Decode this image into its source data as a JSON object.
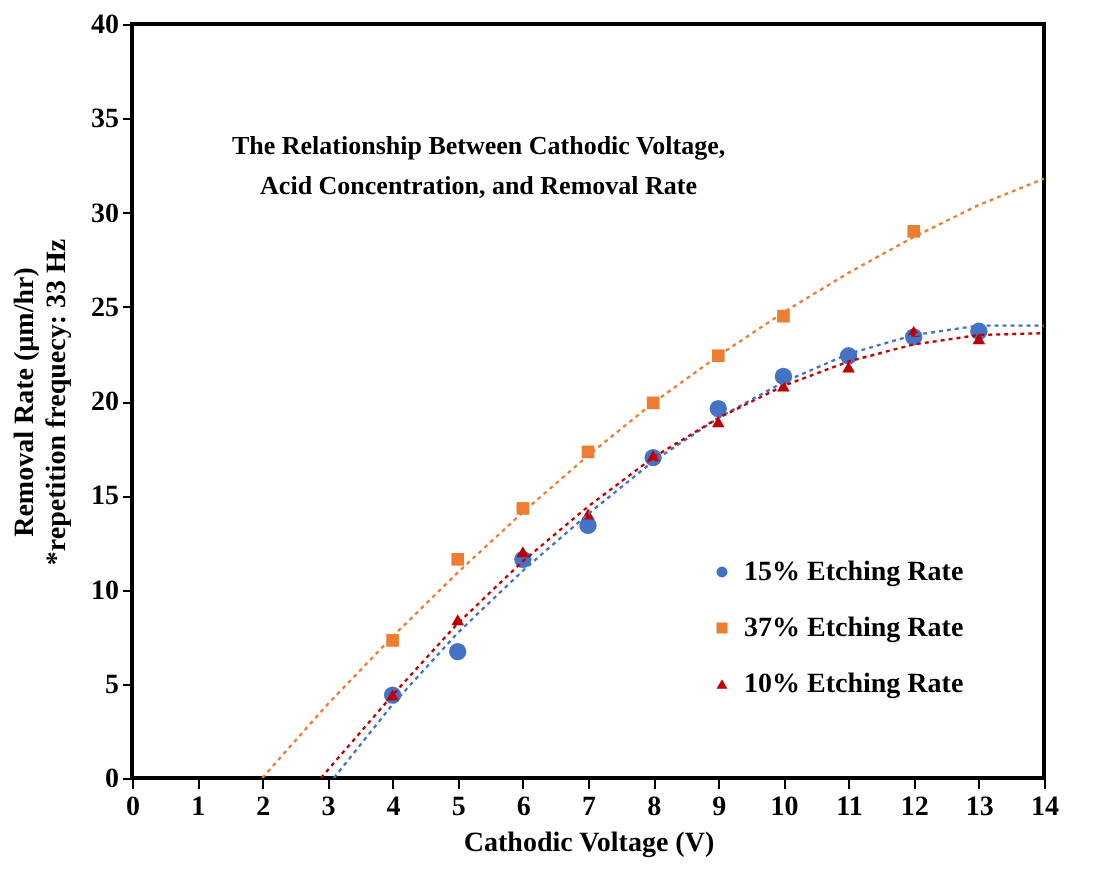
{
  "chart_data": {
    "type": "scatter",
    "title": "The Relationship Between Cathodic Voltage,\nAcid Concentration, and Removal Rate",
    "xlabel": "Cathodic Voltage (V)",
    "ylabel": "Removal  Rate (µm/hr)\n*repetition frequecy: 33 Hz",
    "xlim": [
      0,
      14
    ],
    "ylim": [
      0,
      40
    ],
    "xticks": [
      0,
      1,
      2,
      3,
      4,
      5,
      6,
      7,
      8,
      9,
      10,
      11,
      12,
      13,
      14
    ],
    "yticks": [
      0,
      5,
      10,
      15,
      20,
      25,
      30,
      35,
      40
    ],
    "grid": false,
    "legend": "bottom right",
    "series": [
      {
        "name": "15% Etching Rate",
        "color": "#4472c4",
        "marker": "circle",
        "x": [
          4,
          5,
          6,
          7,
          8,
          9,
          10,
          11,
          12,
          13
        ],
        "values": [
          4.4,
          6.7,
          11.6,
          13.4,
          17.0,
          19.6,
          21.3,
          22.4,
          23.4,
          23.7
        ]
      },
      {
        "name": "37% Etching Rate",
        "color": "#ed7d31",
        "marker": "square",
        "x": [
          4,
          5,
          6,
          7,
          8,
          9,
          10,
          12
        ],
        "values": [
          7.3,
          11.6,
          14.3,
          17.3,
          19.9,
          22.4,
          24.5,
          29.0
        ]
      },
      {
        "name": "10% Etching Rate",
        "color": "#c00000",
        "marker": "triangle",
        "x": [
          4,
          5,
          6,
          7,
          8,
          9,
          10,
          11,
          12,
          13
        ],
        "values": [
          4.4,
          8.4,
          12.0,
          14.0,
          17.1,
          18.9,
          20.8,
          21.8,
          23.7,
          23.3
        ]
      },
      {
        "type": "line",
        "line_style": "dotted",
        "color": "#4472c4",
        "x": [
          3.1,
          4,
          5,
          6,
          7,
          8,
          9,
          10,
          11,
          12,
          13,
          14
        ],
        "values": [
          0,
          3.9,
          7.7,
          11.0,
          14.0,
          16.8,
          19.1,
          21.0,
          22.5,
          23.5,
          24.0,
          24.0
        ]
      },
      {
        "type": "line",
        "line_style": "dotted",
        "color": "#ed7d31",
        "x": [
          2,
          3,
          4,
          5,
          6,
          7,
          8,
          9,
          10,
          11,
          12,
          13,
          14
        ],
        "values": [
          0,
          3.9,
          7.5,
          10.9,
          14.1,
          17.1,
          19.9,
          22.4,
          24.7,
          26.8,
          28.7,
          30.4,
          31.8
        ]
      },
      {
        "type": "line",
        "line_style": "dotted",
        "color": "#c00000",
        "x": [
          2.9,
          4,
          5,
          6,
          7,
          8,
          9,
          10,
          11,
          12,
          13,
          14
        ],
        "values": [
          0,
          4.4,
          8.2,
          11.5,
          14.4,
          17.0,
          19.1,
          20.8,
          22.1,
          23.0,
          23.5,
          23.6
        ]
      }
    ]
  }
}
